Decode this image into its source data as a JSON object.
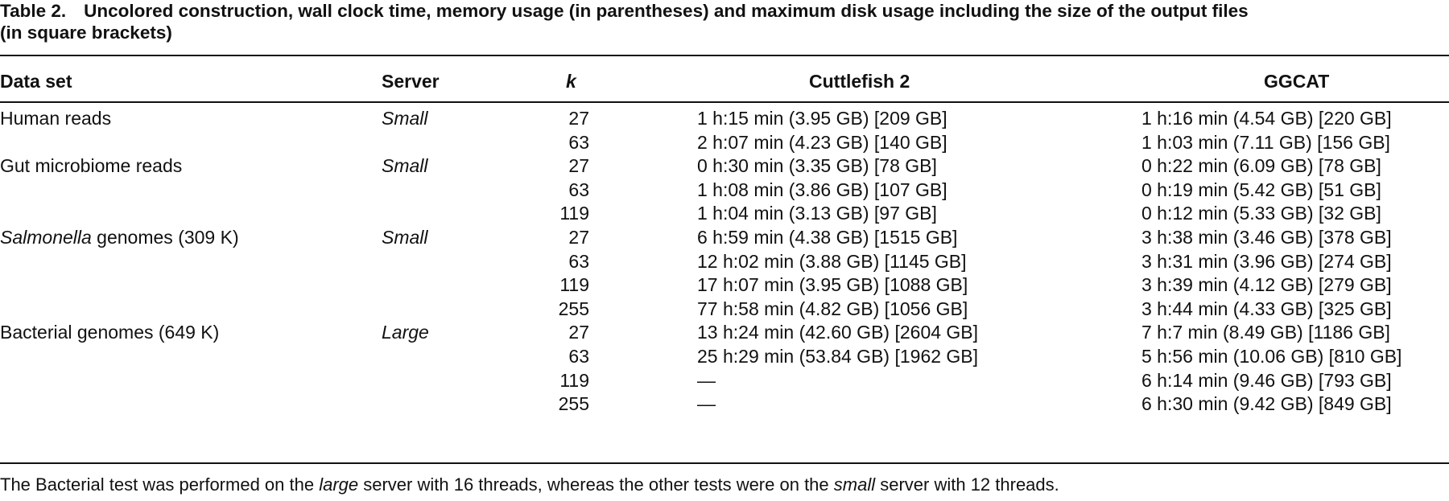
{
  "caption": {
    "label": "Table 2.",
    "line1": "Uncolored construction, wall clock time, memory usage (in parentheses) and maximum disk usage including the size of the output files",
    "line2": "(in square brackets)"
  },
  "columns": {
    "dataset": "Data set",
    "server": "Server",
    "k": "k",
    "cuttlefish": "Cuttlefish 2",
    "ggcat": "GGCAT"
  },
  "rows": [
    {
      "dataset": "Human reads",
      "dataset_italic": "",
      "dataset_rest": "",
      "server": "Small",
      "k": "27",
      "cuttlefish": "1 h:15 min (3.95 GB) [209 GB]",
      "ggcat": "1 h:16 min (4.54 GB) [220 GB]"
    },
    {
      "dataset": "",
      "dataset_italic": "",
      "dataset_rest": "",
      "server": "",
      "k": "63",
      "cuttlefish": "2 h:07 min (4.23 GB) [140 GB]",
      "ggcat": "1 h:03 min (7.11 GB) [156 GB]"
    },
    {
      "dataset": "Gut microbiome reads",
      "dataset_italic": "",
      "dataset_rest": "",
      "server": "Small",
      "k": "27",
      "cuttlefish": "0 h:30 min (3.35 GB) [78 GB]",
      "ggcat": "0 h:22 min (6.09 GB) [78 GB]"
    },
    {
      "dataset": "",
      "dataset_italic": "",
      "dataset_rest": "",
      "server": "",
      "k": "63",
      "cuttlefish": "1 h:08 min (3.86 GB) [107 GB]",
      "ggcat": "0 h:19 min (5.42 GB) [51 GB]"
    },
    {
      "dataset": "",
      "dataset_italic": "",
      "dataset_rest": "",
      "server": "",
      "k": "119",
      "cuttlefish": "1 h:04 min (3.13 GB) [97 GB]",
      "ggcat": "0 h:12 min (5.33 GB) [32 GB]"
    },
    {
      "dataset": "",
      "dataset_italic": "Salmonella",
      "dataset_rest": " genomes (309 K)",
      "server": "Small",
      "k": "27",
      "cuttlefish": "6 h:59 min (4.38 GB) [1515 GB]",
      "ggcat": "3 h:38 min (3.46 GB) [378 GB]"
    },
    {
      "dataset": "",
      "dataset_italic": "",
      "dataset_rest": "",
      "server": "",
      "k": "63",
      "cuttlefish": "12 h:02 min (3.88 GB) [1145 GB]",
      "ggcat": "3 h:31 min (3.96 GB) [274 GB]"
    },
    {
      "dataset": "",
      "dataset_italic": "",
      "dataset_rest": "",
      "server": "",
      "k": "119",
      "cuttlefish": "17 h:07 min (3.95 GB) [1088 GB]",
      "ggcat": "3 h:39 min (4.12 GB) [279 GB]"
    },
    {
      "dataset": "",
      "dataset_italic": "",
      "dataset_rest": "",
      "server": "",
      "k": "255",
      "cuttlefish": "77 h:58 min (4.82 GB) [1056 GB]",
      "ggcat": "3 h:44 min (4.33 GB) [325 GB]"
    },
    {
      "dataset": "Bacterial genomes (649 K)",
      "dataset_italic": "",
      "dataset_rest": "",
      "server": "Large",
      "k": "27",
      "cuttlefish": "13 h:24 min (42.60 GB) [2604 GB]",
      "ggcat": "7 h:7 min (8.49 GB) [1186 GB]"
    },
    {
      "dataset": "",
      "dataset_italic": "",
      "dataset_rest": "",
      "server": "",
      "k": "63",
      "cuttlefish": "25 h:29 min (53.84 GB) [1962 GB]",
      "ggcat": "5 h:56 min (10.06 GB) [810 GB]"
    },
    {
      "dataset": "",
      "dataset_italic": "",
      "dataset_rest": "",
      "server": "",
      "k": "119",
      "cuttlefish": "—",
      "ggcat": "6 h:14 min (9.46 GB) [793 GB]"
    },
    {
      "dataset": "",
      "dataset_italic": "",
      "dataset_rest": "",
      "server": "",
      "k": "255",
      "cuttlefish": "—",
      "ggcat": "6 h:30 min (9.42 GB) [849 GB]"
    }
  ],
  "footnote": {
    "part1": "The Bacterial test was performed on the ",
    "part2": "large",
    "part3": " server with 16 threads, whereas the other tests were on the ",
    "part4": "small",
    "part5": " server with 12 threads."
  }
}
